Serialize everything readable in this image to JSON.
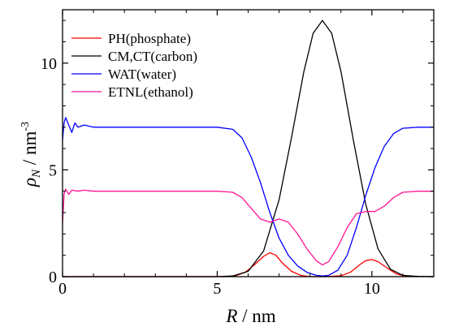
{
  "chart_data": {
    "type": "line",
    "title": "",
    "xlabel": {
      "symbol": "R",
      "sep": " / ",
      "unit": "nm"
    },
    "ylabel": {
      "symbol": "ρ",
      "sub": "N",
      "sep": " / ",
      "unit": "nm",
      "sup": "-3"
    },
    "xlim": [
      0,
      12
    ],
    "ylim": [
      0,
      12.5
    ],
    "xticks": [
      0,
      5,
      10
    ],
    "yticks": [
      0,
      5,
      10
    ],
    "xtick_labels": [
      "0",
      "5",
      "10"
    ],
    "ytick_labels": [
      "0",
      "5",
      "10"
    ],
    "grid": false,
    "legend_position": "top-left",
    "series": [
      {
        "name": "PH(phosphate)",
        "color": "#ff0000",
        "x": [
          0,
          5.3,
          5.6,
          5.9,
          6.2,
          6.5,
          6.7,
          6.9,
          7.1,
          7.4,
          7.7,
          8.0,
          8.5,
          9.0,
          9.3,
          9.6,
          9.8,
          10.0,
          10.2,
          10.5,
          10.8,
          11.1,
          12
        ],
        "values": [
          0,
          0,
          0.05,
          0.2,
          0.55,
          0.95,
          1.12,
          1.0,
          0.65,
          0.25,
          0.06,
          0,
          0,
          0.04,
          0.2,
          0.55,
          0.75,
          0.8,
          0.7,
          0.4,
          0.12,
          0.02,
          0
        ]
      },
      {
        "name": "CM,CT(carbon)",
        "color": "#000000",
        "x": [
          0,
          5.0,
          5.5,
          6.0,
          6.5,
          7.0,
          7.4,
          7.8,
          8.1,
          8.4,
          8.7,
          9.0,
          9.4,
          9.8,
          10.2,
          10.6,
          11.0,
          11.5,
          12
        ],
        "values": [
          0,
          0,
          0.03,
          0.25,
          1.2,
          3.6,
          6.5,
          9.6,
          11.4,
          12.0,
          11.4,
          9.6,
          6.4,
          3.4,
          1.3,
          0.35,
          0.06,
          0.01,
          0
        ]
      },
      {
        "name": "WAT(water)",
        "color": "#0000ff",
        "x": [
          0,
          0.05,
          0.1,
          0.2,
          0.3,
          0.4,
          0.5,
          0.7,
          1.0,
          2.0,
          3.0,
          4.0,
          5.0,
          5.5,
          5.8,
          6.1,
          6.4,
          6.7,
          7.0,
          7.3,
          7.6,
          7.9,
          8.2,
          8.4,
          8.6,
          8.9,
          9.2,
          9.5,
          9.8,
          10.1,
          10.4,
          10.7,
          11.0,
          11.5,
          12
        ],
        "values": [
          6.4,
          7.2,
          7.45,
          7.1,
          6.75,
          7.2,
          7.0,
          7.1,
          7.0,
          7.0,
          7.0,
          7.0,
          7.0,
          6.9,
          6.5,
          5.6,
          4.4,
          3.0,
          1.8,
          1.0,
          0.5,
          0.2,
          0.06,
          0.03,
          0.06,
          0.3,
          1.0,
          2.3,
          3.8,
          5.1,
          6.1,
          6.7,
          6.95,
          7.0,
          7.0
        ]
      },
      {
        "name": "ETNL(ethanol)",
        "color": "#ff1493",
        "x": [
          0,
          0.05,
          0.1,
          0.2,
          0.3,
          0.5,
          0.7,
          1.0,
          2.0,
          3.0,
          4.0,
          5.0,
          5.5,
          5.8,
          6.1,
          6.4,
          6.7,
          7.0,
          7.3,
          7.6,
          7.9,
          8.2,
          8.4,
          8.6,
          8.9,
          9.2,
          9.5,
          9.8,
          10.1,
          10.4,
          10.7,
          11.0,
          11.5,
          12
        ],
        "values": [
          2.5,
          3.85,
          4.1,
          3.85,
          4.05,
          4.0,
          4.05,
          4.0,
          4.0,
          4.0,
          4.0,
          4.0,
          3.95,
          3.7,
          3.2,
          2.7,
          2.55,
          2.7,
          2.55,
          2.0,
          1.3,
          0.75,
          0.55,
          0.7,
          1.4,
          2.3,
          2.95,
          3.05,
          3.05,
          3.3,
          3.7,
          3.95,
          4.0,
          4.0
        ]
      }
    ]
  }
}
